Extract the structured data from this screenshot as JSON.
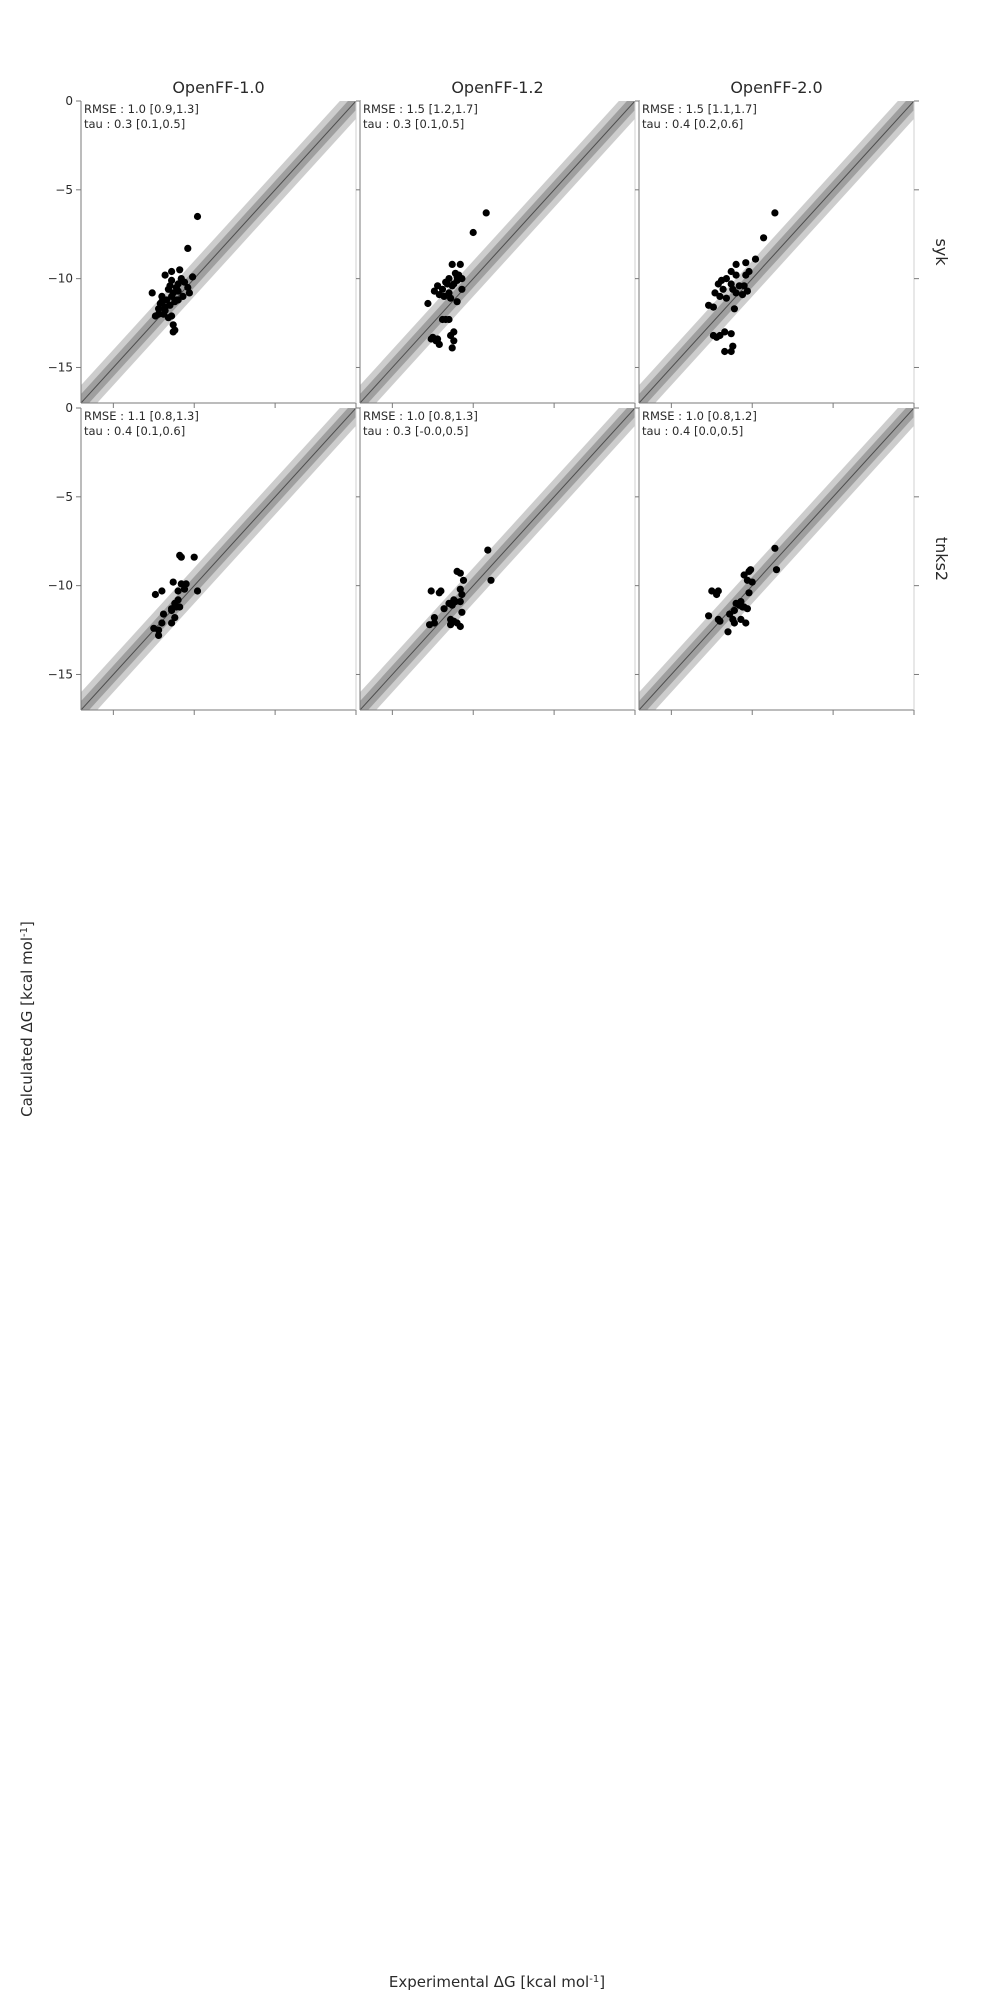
{
  "figure": {
    "x_axis_title": "Experimental ΔG [kcal mol",
    "y_axis_title": "Calculated ΔG [kcal mol",
    "unit_superscript": "-1",
    "unit_close": "]",
    "colors": {
      "band_outer": "#cdcdcd",
      "band_inner": "#9f9f9f",
      "diagonal": "#4d4d4d",
      "points": "#000000",
      "frame": "#7a7a7a"
    }
  },
  "chart_data": [
    {
      "type": "scatter",
      "title": "OpenFF-1.0",
      "row": "syk",
      "stats": [
        "RMSE : 1.0 [0.9,1.3]",
        "tau  : 0.3 [0.1,0.5]"
      ],
      "xlim": [
        -17,
        0
      ],
      "ylim": [
        -17,
        0
      ],
      "yticks": [
        0,
        -5,
        -10,
        -15
      ],
      "points": [
        [
          -9.8,
          -6.5
        ],
        [
          -10.4,
          -8.3
        ],
        [
          -10.1,
          -9.9
        ],
        [
          -10.4,
          -10.5
        ],
        [
          -10.3,
          -10.8
        ],
        [
          -10.6,
          -10.2
        ],
        [
          -10.8,
          -10.0
        ],
        [
          -10.9,
          -9.5
        ],
        [
          -11.0,
          -10.3
        ],
        [
          -11.0,
          -10.7
        ],
        [
          -11.1,
          -11.2
        ],
        [
          -11.3,
          -10.8
        ],
        [
          -11.4,
          -9.6
        ],
        [
          -11.4,
          -10.1
        ],
        [
          -11.4,
          -11.0
        ],
        [
          -11.5,
          -11.5
        ],
        [
          -11.6,
          -10.6
        ],
        [
          -11.7,
          -11.2
        ],
        [
          -11.8,
          -9.8
        ],
        [
          -11.8,
          -11.6
        ],
        [
          -12.0,
          -11.0
        ],
        [
          -12.1,
          -11.4
        ],
        [
          -12.2,
          -12.0
        ],
        [
          -12.4,
          -12.1
        ],
        [
          -12.6,
          -10.8
        ],
        [
          -11.2,
          -11.3
        ],
        [
          -11.4,
          -12.1
        ],
        [
          -11.3,
          -12.6
        ],
        [
          -11.3,
          -13.0
        ],
        [
          -11.2,
          -12.9
        ],
        [
          -11.6,
          -12.2
        ],
        [
          -11.9,
          -12.0
        ],
        [
          -12.2,
          -11.7
        ],
        [
          -11.0,
          -11.2
        ],
        [
          -11.1,
          -10.5
        ],
        [
          -10.7,
          -11.0
        ],
        [
          -11.5,
          -10.4
        ],
        [
          -11.8,
          -11.8
        ],
        [
          -12.0,
          -11.3
        ]
      ]
    },
    {
      "type": "scatter",
      "title": "OpenFF-1.2",
      "row": "syk",
      "stats": [
        "RMSE : 1.5 [1.2,1.7]",
        "tau  : 0.3 [0.1,0.5]"
      ],
      "xlim": [
        -17,
        0
      ],
      "ylim": [
        -17,
        0
      ],
      "yticks": [
        0,
        -5,
        -10,
        -15
      ],
      "points": [
        [
          -9.2,
          -6.3
        ],
        [
          -10.0,
          -7.4
        ],
        [
          -10.8,
          -9.2
        ],
        [
          -11.3,
          -9.2
        ],
        [
          -10.9,
          -9.8
        ],
        [
          -11.1,
          -9.7
        ],
        [
          -11.2,
          -10.3
        ],
        [
          -11.5,
          -10.0
        ],
        [
          -11.7,
          -10.2
        ],
        [
          -11.9,
          -10.6
        ],
        [
          -12.2,
          -10.4
        ],
        [
          -12.4,
          -10.7
        ],
        [
          -11.8,
          -11.0
        ],
        [
          -11.4,
          -11.1
        ],
        [
          -11.0,
          -11.3
        ],
        [
          -10.7,
          -10.6
        ],
        [
          -11.6,
          -10.3
        ],
        [
          -11.5,
          -10.8
        ],
        [
          -12.1,
          -10.9
        ],
        [
          -11.3,
          -10.4
        ],
        [
          -11.0,
          -10.1
        ],
        [
          -10.7,
          -10.0
        ],
        [
          -12.8,
          -11.4
        ],
        [
          -11.7,
          -12.3
        ],
        [
          -11.5,
          -12.3
        ],
        [
          -12.5,
          -13.3
        ],
        [
          -12.2,
          -13.4
        ],
        [
          -12.3,
          -13.5
        ],
        [
          -12.1,
          -13.7
        ],
        [
          -11.4,
          -13.2
        ],
        [
          -11.2,
          -13.0
        ],
        [
          -11.2,
          -13.5
        ],
        [
          -11.3,
          -13.9
        ],
        [
          -12.6,
          -13.4
        ],
        [
          -11.9,
          -12.3
        ],
        [
          -11.0,
          -9.9
        ]
      ]
    },
    {
      "type": "scatter",
      "title": "OpenFF-2.0",
      "row": "syk",
      "stats": [
        "RMSE : 1.5 [1.1,1.7]",
        "tau  : 0.4 [0.2,0.6]"
      ],
      "xlim": [
        -17,
        0
      ],
      "ylim": [
        -17,
        0
      ],
      "yticks": [
        0,
        -5,
        -10,
        -15
      ],
      "points": [
        [
          -8.6,
          -6.3
        ],
        [
          -9.3,
          -7.7
        ],
        [
          -9.8,
          -8.9
        ],
        [
          -10.4,
          -9.1
        ],
        [
          -11.0,
          -9.2
        ],
        [
          -10.2,
          -9.6
        ],
        [
          -10.4,
          -9.8
        ],
        [
          -11.0,
          -9.8
        ],
        [
          -11.3,
          -9.6
        ],
        [
          -11.6,
          -10.0
        ],
        [
          -11.9,
          -10.1
        ],
        [
          -12.1,
          -10.3
        ],
        [
          -11.8,
          -10.6
        ],
        [
          -11.2,
          -10.6
        ],
        [
          -11.0,
          -10.8
        ],
        [
          -10.5,
          -10.4
        ],
        [
          -10.3,
          -10.7
        ],
        [
          -11.6,
          -11.1
        ],
        [
          -12.0,
          -11.0
        ],
        [
          -12.3,
          -10.8
        ],
        [
          -12.7,
          -11.5
        ],
        [
          -12.4,
          -11.6
        ],
        [
          -11.1,
          -11.7
        ],
        [
          -11.3,
          -10.3
        ],
        [
          -12.2,
          -13.3
        ],
        [
          -12.0,
          -13.2
        ],
        [
          -11.7,
          -13.0
        ],
        [
          -11.3,
          -13.1
        ],
        [
          -11.2,
          -13.8
        ],
        [
          -11.3,
          -14.1
        ],
        [
          -12.4,
          -13.2
        ],
        [
          -11.7,
          -14.1
        ],
        [
          -10.8,
          -10.4
        ],
        [
          -10.6,
          -10.9
        ]
      ]
    },
    {
      "type": "scatter",
      "title": "OpenFF-1.0",
      "row": "tnks2",
      "stats": [
        "RMSE : 1.1 [0.8,1.3]",
        "tau  : 0.4 [0.1,0.6]"
      ],
      "xlim": [
        -17,
        0
      ],
      "ylim": [
        -17,
        0
      ],
      "yticks": [
        0,
        -5,
        -10,
        -15
      ],
      "points": [
        [
          -10.0,
          -8.4
        ],
        [
          -10.9,
          -8.3
        ],
        [
          -10.8,
          -8.4
        ],
        [
          -10.5,
          -9.9
        ],
        [
          -10.6,
          -10.2
        ],
        [
          -10.8,
          -9.9
        ],
        [
          -11.0,
          -10.3
        ],
        [
          -11.3,
          -9.8
        ],
        [
          -11.0,
          -10.8
        ],
        [
          -10.9,
          -11.2
        ],
        [
          -11.2,
          -11.0
        ],
        [
          -11.4,
          -11.4
        ],
        [
          -11.1,
          -11.2
        ],
        [
          -11.2,
          -11.8
        ],
        [
          -11.4,
          -12.1
        ],
        [
          -11.9,
          -11.6
        ],
        [
          -12.0,
          -10.3
        ],
        [
          -12.4,
          -10.5
        ],
        [
          -12.5,
          -12.4
        ],
        [
          -12.2,
          -12.5
        ],
        [
          -12.2,
          -12.8
        ],
        [
          -12.0,
          -12.1
        ],
        [
          -11.4,
          -11.3
        ],
        [
          -9.8,
          -10.3
        ]
      ]
    },
    {
      "type": "scatter",
      "title": "OpenFF-1.2",
      "row": "tnks2",
      "stats": [
        "RMSE : 1.0 [0.8,1.3]",
        "tau  : 0.3 [-0.0,0.5]"
      ],
      "xlim": [
        -17,
        0
      ],
      "ylim": [
        -17,
        0
      ],
      "yticks": [
        0,
        -5,
        -10,
        -15
      ],
      "points": [
        [
          -9.1,
          -8.0
        ],
        [
          -8.9,
          -9.7
        ],
        [
          -11.0,
          -9.2
        ],
        [
          -10.8,
          -9.3
        ],
        [
          -10.6,
          -9.7
        ],
        [
          -10.8,
          -10.2
        ],
        [
          -10.7,
          -10.5
        ],
        [
          -10.8,
          -10.9
        ],
        [
          -11.1,
          -10.9
        ],
        [
          -11.5,
          -11.0
        ],
        [
          -11.3,
          -11.1
        ],
        [
          -11.2,
          -10.8
        ],
        [
          -11.8,
          -11.3
        ],
        [
          -12.0,
          -10.3
        ],
        [
          -12.1,
          -10.4
        ],
        [
          -12.6,
          -10.3
        ],
        [
          -12.7,
          -12.2
        ],
        [
          -12.4,
          -12.1
        ],
        [
          -12.4,
          -11.8
        ],
        [
          -11.4,
          -11.9
        ],
        [
          -11.4,
          -12.2
        ],
        [
          -11.2,
          -12.0
        ],
        [
          -11.0,
          -12.1
        ],
        [
          -10.8,
          -12.3
        ],
        [
          -10.7,
          -11.5
        ]
      ]
    },
    {
      "type": "scatter",
      "title": "OpenFF-2.0",
      "row": "tnks2",
      "stats": [
        "RMSE : 1.0 [0.8,1.2]",
        "tau  : 0.4 [0.0,0.5]"
      ],
      "xlim": [
        -17,
        0
      ],
      "ylim": [
        -17,
        0
      ],
      "yticks": [
        0,
        -5,
        -10,
        -15
      ],
      "points": [
        [
          -8.6,
          -7.9
        ],
        [
          -8.5,
          -9.1
        ],
        [
          -10.1,
          -9.1
        ],
        [
          -10.2,
          -9.2
        ],
        [
          -10.5,
          -9.4
        ],
        [
          -10.3,
          -9.7
        ],
        [
          -10.0,
          -9.8
        ],
        [
          -10.2,
          -10.4
        ],
        [
          -10.7,
          -10.9
        ],
        [
          -10.8,
          -11.1
        ],
        [
          -11.0,
          -11.0
        ],
        [
          -10.6,
          -11.2
        ],
        [
          -10.3,
          -11.3
        ],
        [
          -10.5,
          -11.2
        ],
        [
          -11.1,
          -11.4
        ],
        [
          -11.4,
          -11.6
        ],
        [
          -11.2,
          -11.9
        ],
        [
          -10.7,
          -11.9
        ],
        [
          -10.4,
          -12.1
        ],
        [
          -11.1,
          -12.1
        ],
        [
          -11.5,
          -12.6
        ],
        [
          -12.0,
          -12.0
        ],
        [
          -12.1,
          -11.9
        ],
        [
          -12.1,
          -10.3
        ],
        [
          -12.5,
          -10.3
        ],
        [
          -12.2,
          -10.5
        ],
        [
          -12.7,
          -11.7
        ]
      ]
    }
  ]
}
